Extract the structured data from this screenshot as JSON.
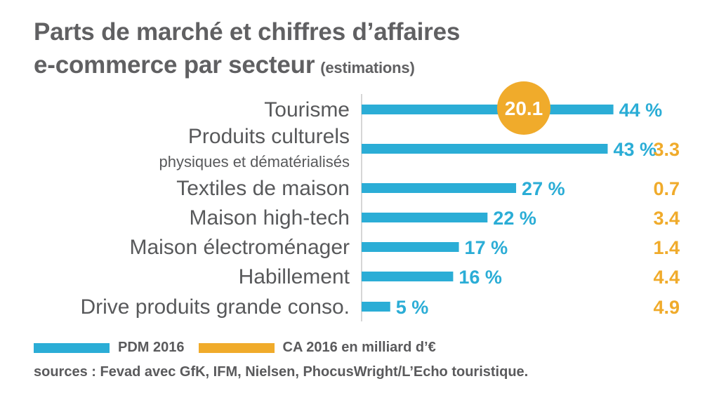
{
  "header": {
    "title_line1": "Parts de marché et chiffres d’affaires",
    "title_line2": "e-commerce par secteur",
    "subtitle": "(estimations)"
  },
  "colors": {
    "pdm": "#2badd6",
    "ca": "#f0ab2b",
    "text": "#58595b",
    "axis": "#c8c8c8"
  },
  "chart_data": {
    "type": "bar",
    "orientation": "horizontal",
    "categories": [
      [
        "Tourisme"
      ],
      [
        "Produits culturels",
        "physiques et dématérialisés"
      ],
      [
        "Textiles de maison"
      ],
      [
        "Maison high-tech"
      ],
      [
        "Maison électroménager"
      ],
      [
        "Habillement"
      ],
      [
        "Drive produits grande conso."
      ]
    ],
    "series": [
      {
        "name": "PDM 2016",
        "values": [
          44,
          43,
          27,
          22,
          17,
          16,
          5
        ],
        "labels": [
          "44 %",
          "43 %",
          "27 %",
          "22 %",
          "17 %",
          "16 %",
          "5 %"
        ]
      },
      {
        "name": "CA 2016 en milliard d’€",
        "values": [
          20.1,
          3.3,
          0.7,
          3.4,
          1.4,
          4.4,
          4.9
        ],
        "labels": [
          "20.1",
          "3.3",
          "0.7",
          "3.4",
          "1.4",
          "4.4",
          "4.9"
        ]
      }
    ],
    "highlight": "20.1"
  },
  "legend": {
    "pdm_label": "PDM 2016",
    "ca_label": "CA 2016 en milliard d’€"
  },
  "source": "sources : Fevad avec GfK, IFM, Nielsen, PhocusWright/L’Echo touristique."
}
